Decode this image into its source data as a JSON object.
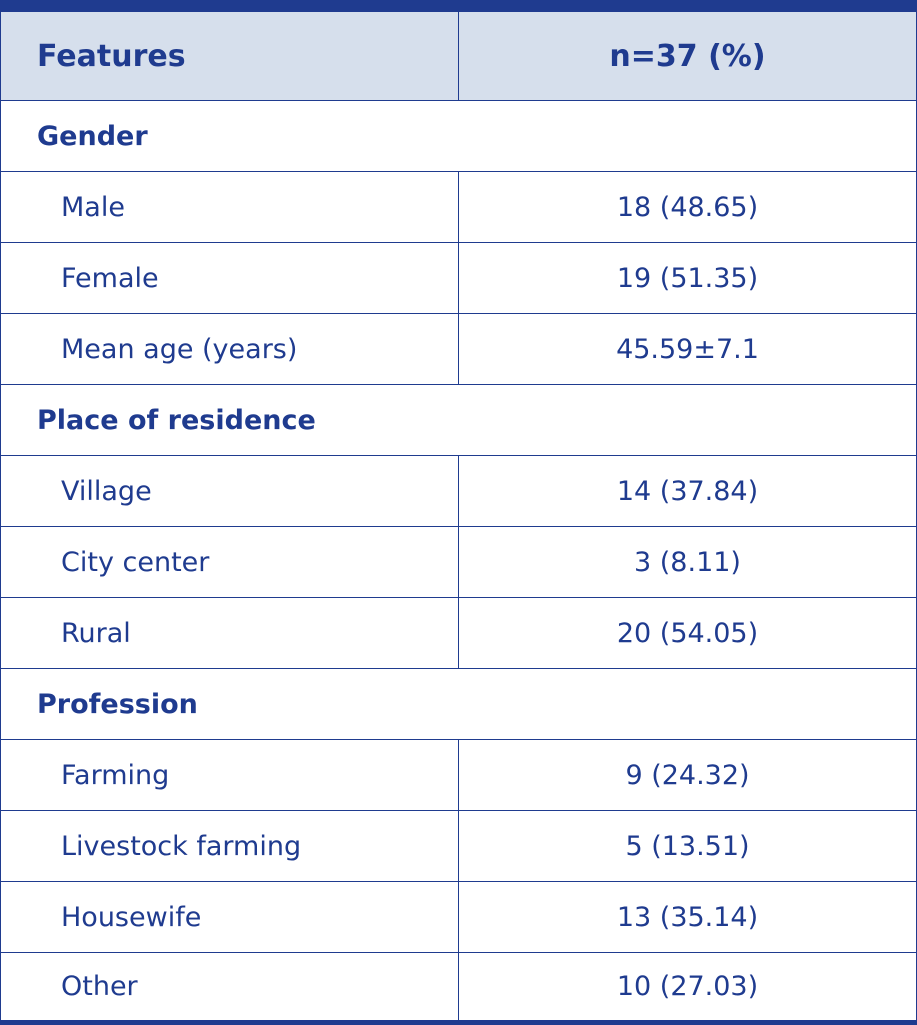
{
  "header": {
    "features_label": "Features",
    "count_label": "n=37 (%)"
  },
  "sections": [
    {
      "title": "Gender",
      "rows": [
        {
          "label": "Male",
          "value": "18 (48.65)"
        },
        {
          "label": "Female",
          "value": "19 (51.35)"
        },
        {
          "label": "Mean age (years)",
          "value": "45.59±7.1"
        }
      ]
    },
    {
      "title": "Place of residence",
      "rows": [
        {
          "label": "Village",
          "value": "14 (37.84)"
        },
        {
          "label": "City center",
          "value": "3 (8.11)"
        },
        {
          "label": "Rural",
          "value": "20 (54.05)"
        }
      ]
    },
    {
      "title": "Profession",
      "rows": [
        {
          "label": "Farming",
          "value": "9 (24.32)"
        },
        {
          "label": "Livestock farming",
          "value": "5 (13.51)"
        },
        {
          "label": "Housewife",
          "value": "13 (35.14)"
        },
        {
          "label": "Other",
          "value": "10 (27.03)"
        }
      ]
    }
  ]
}
